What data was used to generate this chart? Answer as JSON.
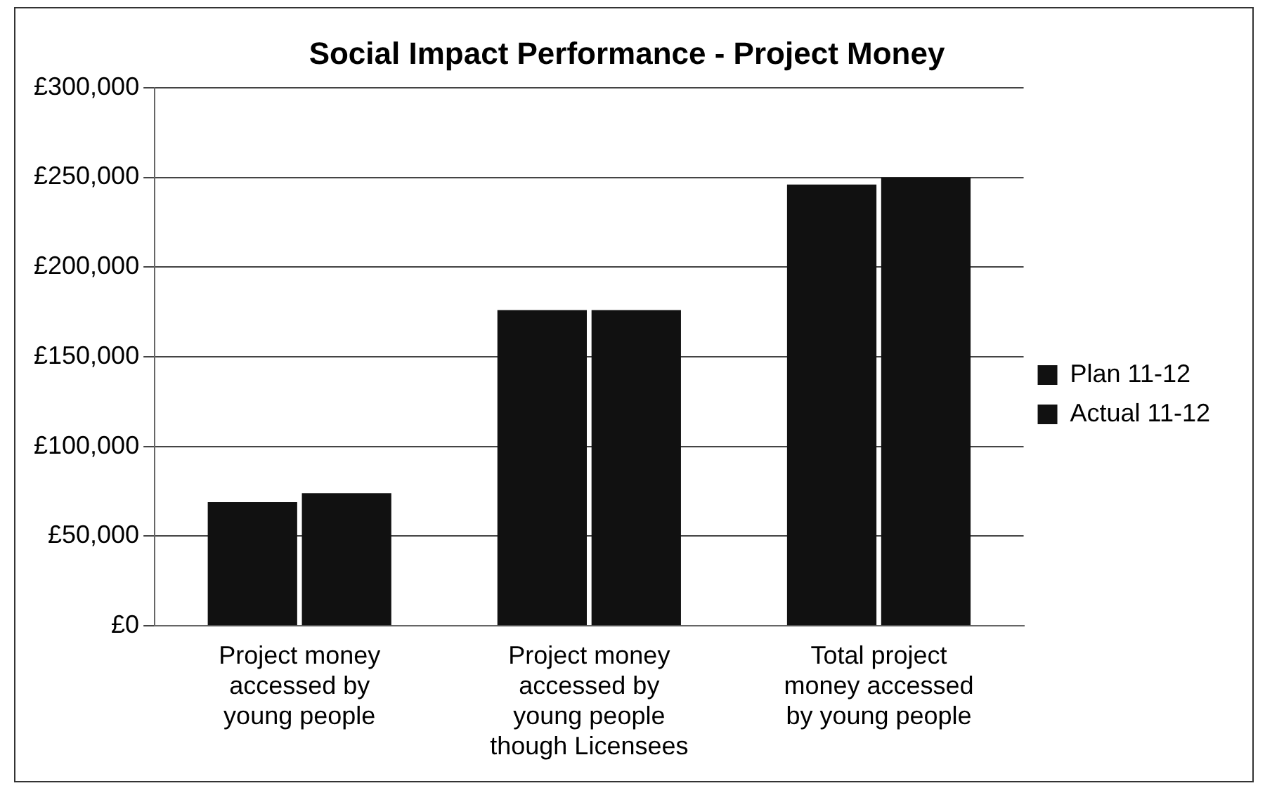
{
  "chart_data": {
    "type": "bar",
    "title": "Social Impact Performance - Project Money",
    "categories": [
      "Project money\naccessed by\nyoung people",
      "Project money\naccessed by\nyoung people\nthough Licensees",
      "Total project\nmoney accessed\nby young people"
    ],
    "series": [
      {
        "name": "Plan 11-12",
        "color": "#111111",
        "values": [
          69000,
          176000,
          246000
        ]
      },
      {
        "name": "Actual 11-12",
        "color": "#111111",
        "values": [
          74000,
          176000,
          250000
        ]
      }
    ],
    "ylim": [
      0,
      300000
    ],
    "yticks": [
      {
        "value": 0,
        "label": "£0"
      },
      {
        "value": 50000,
        "label": "£50,000"
      },
      {
        "value": 100000,
        "label": "£100,000"
      },
      {
        "value": 150000,
        "label": "£150,000"
      },
      {
        "value": 200000,
        "label": "£200,000"
      },
      {
        "value": 250000,
        "label": "£250,000"
      },
      {
        "value": 300000,
        "label": "£300,000"
      }
    ],
    "grid": "y",
    "legend": "right"
  }
}
